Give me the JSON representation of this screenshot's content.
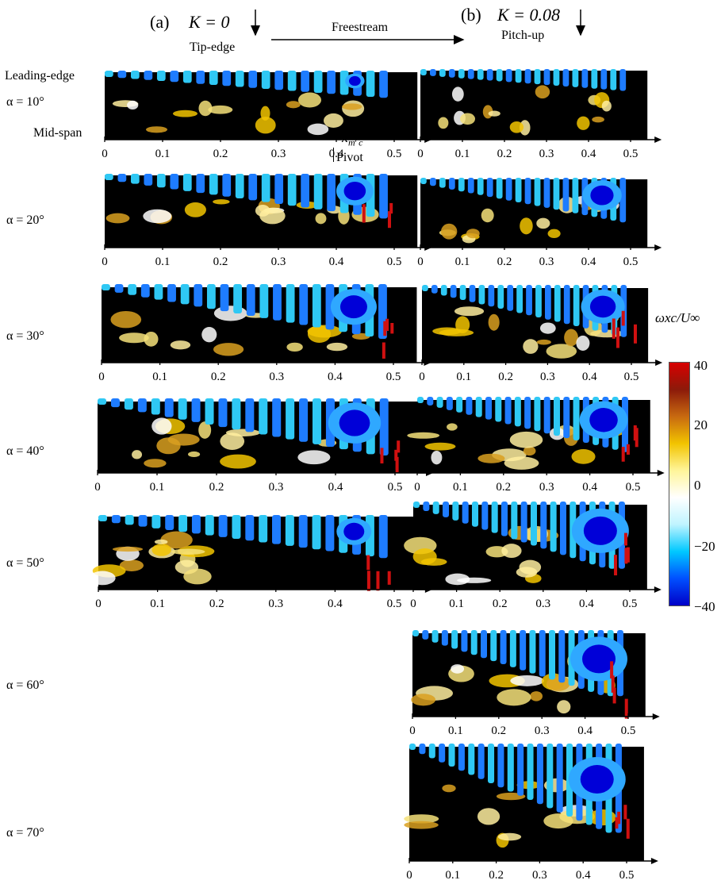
{
  "figure": {
    "left_case": {
      "tag": "(a)",
      "param": "K = 0",
      "direction_label": "Tip-edge"
    },
    "right_case": {
      "tag": "(b)",
      "param": "K = 0.08",
      "direction_label": "Pitch-up"
    },
    "freestream_label": "Freestream",
    "annotations": {
      "leading_edge": "Leading-edge",
      "mid_span": "Mid-span",
      "pivot": "Pivot"
    },
    "x_axis_symbol": "x",
    "x_axis_sub": "m",
    "x_axis_den": "c",
    "x_ticks": [
      "0",
      "0.1",
      "0.2",
      "0.3",
      "0.4",
      "0.5"
    ],
    "alpha_labels": [
      "α = 10°",
      "α = 20°",
      "α = 30°",
      "α = 40°",
      "α = 50°",
      "α = 60°",
      "α = 70°"
    ],
    "colorbar": {
      "title": "ωxc/U∞",
      "ticks": [
        "40",
        "20",
        "0",
        "−20",
        "−40"
      ],
      "min": -40,
      "max": 40,
      "colors": [
        "#0000c8",
        "#0050ff",
        "#00c8ff",
        "#bff4ff",
        "#ffffff",
        "#fff59a",
        "#f2c400",
        "#c86a10",
        "#8c1a0a",
        "#d80000"
      ]
    }
  }
}
